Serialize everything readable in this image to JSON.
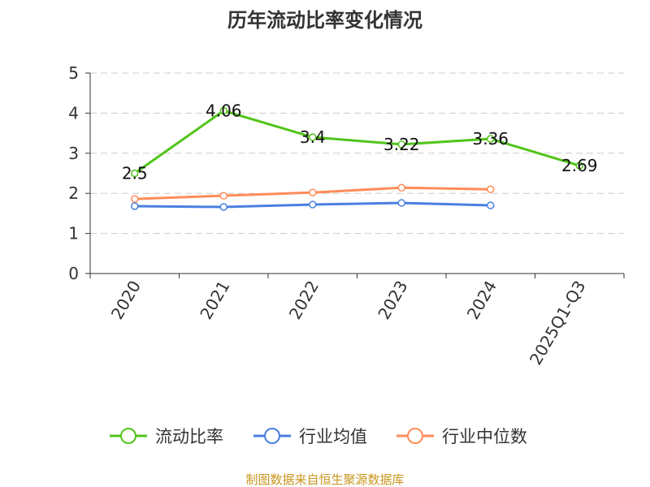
{
  "chart_data": {
    "type": "line",
    "title": "历年流动比率变化情况",
    "categories": [
      "2020",
      "2021",
      "2022",
      "2023",
      "2024",
      "2025Q1-Q3"
    ],
    "ylim": [
      0,
      5
    ],
    "yticks": [
      "0",
      "1",
      "2",
      "3",
      "4",
      "5"
    ],
    "grid": true,
    "legend_position": "bottom",
    "series": [
      {
        "name": "流动比率",
        "color": "#52c41a",
        "values": [
          2.5,
          4.06,
          3.4,
          3.22,
          3.36,
          2.69
        ],
        "labels": [
          "2.5",
          "4.06",
          "3.4",
          "3.22",
          "3.36",
          "2.69"
        ]
      },
      {
        "name": "行业均值",
        "color": "#4a7fe0",
        "values": [
          1.68,
          1.66,
          1.72,
          1.76,
          1.7,
          null
        ]
      },
      {
        "name": "行业中位数",
        "color": "#ff8c5a",
        "values": [
          1.86,
          1.94,
          2.02,
          2.14,
          2.1,
          null
        ]
      }
    ]
  },
  "footer": "制图数据来自恒生聚源数据库"
}
